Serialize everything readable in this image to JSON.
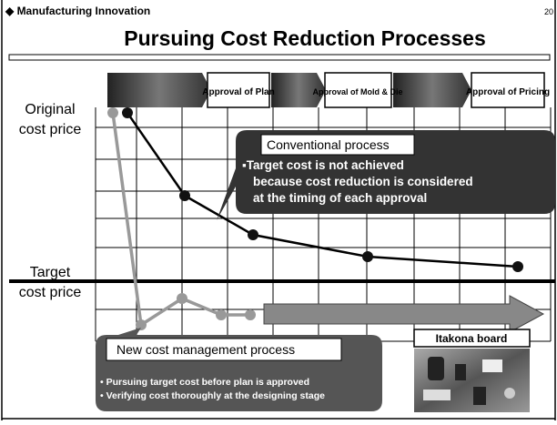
{
  "header": {
    "section": "◆ Manufacturing Innovation",
    "page": "20",
    "title": "Pursuing Cost Reduction Processes"
  },
  "stages": [
    "Approval of Plan",
    "Approval of Mold & Die",
    "Approval of Pricing"
  ],
  "y_labels": {
    "original": [
      "Original",
      "cost price"
    ],
    "target": [
      "Target",
      "cost price"
    ]
  },
  "conventional": {
    "title": "Conventional process",
    "lines": [
      "▪Target cost is not achieved",
      "because cost reduction is considered",
      "at the timing of each approval"
    ]
  },
  "new_process": {
    "title": "New cost management process",
    "bullets": [
      "• Pursuing target cost before plan is approved",
      "• Verifying cost thoroughly at the designing stage"
    ]
  },
  "photo": {
    "label": "Itakona board"
  }
}
